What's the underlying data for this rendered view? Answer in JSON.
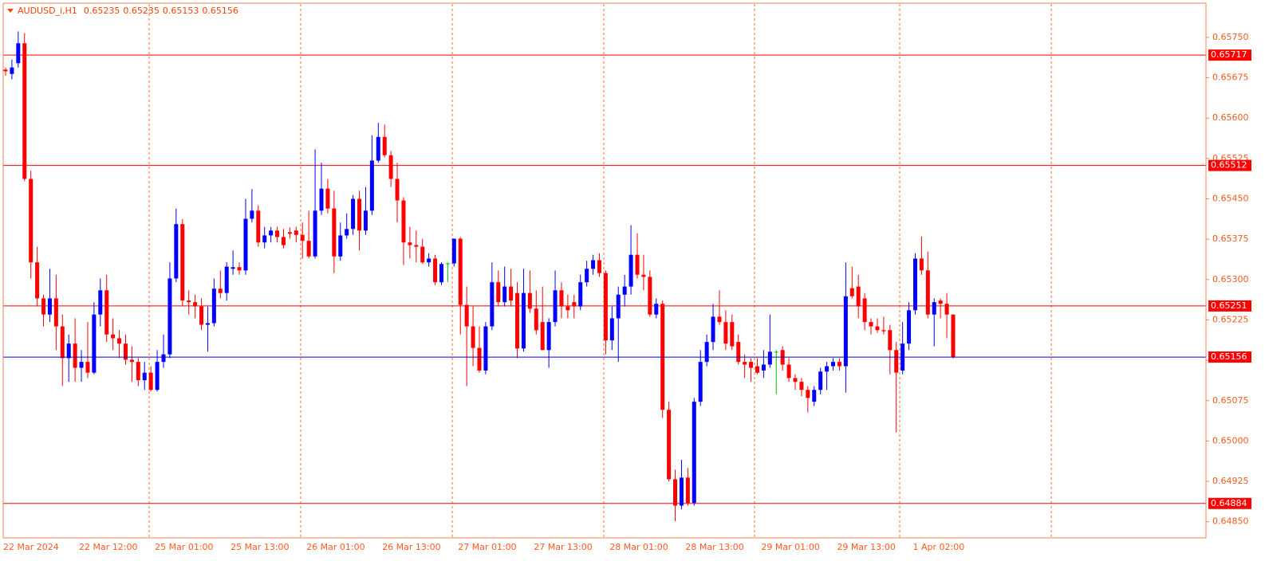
{
  "chart_data": {
    "type": "candlestick",
    "title": "AUDUSD_i,H1",
    "categories": [
      "22 Mar 2024",
      null,
      null,
      null,
      null,
      null,
      null,
      null,
      null,
      null,
      null,
      null,
      "22 Mar 12:00",
      null,
      null,
      null,
      null,
      null,
      null,
      null,
      null,
      null,
      null,
      null,
      "25 Mar 01:00",
      null,
      null,
      null,
      null,
      null,
      null,
      null,
      null,
      null,
      null,
      null,
      "25 Mar 13:00",
      null,
      null,
      null,
      null,
      null,
      null,
      null,
      null,
      null,
      null,
      null,
      "26 Mar 01:00",
      null,
      null,
      null,
      null,
      null,
      null,
      null,
      null,
      null,
      null,
      null,
      "26 Mar 13:00",
      null,
      null,
      null,
      null,
      null,
      null,
      null,
      null,
      null,
      null,
      null,
      "27 Mar 01:00",
      null,
      null,
      null,
      null,
      null,
      null,
      null,
      null,
      null,
      null,
      null,
      "27 Mar 13:00",
      null,
      null,
      null,
      null,
      null,
      null,
      null,
      null,
      null,
      null,
      null,
      "28 Mar 01:00",
      null,
      null,
      null,
      null,
      null,
      null,
      null,
      null,
      null,
      null,
      null,
      "28 Mar 13:00",
      null,
      null,
      null,
      null,
      null,
      null,
      null,
      null,
      null,
      null,
      null,
      "29 Mar 01:00",
      null,
      null,
      null,
      null,
      null,
      null,
      null,
      null,
      null,
      null,
      null,
      "29 Mar 13:00",
      null,
      null,
      null,
      null,
      null,
      null,
      null,
      null,
      null,
      null,
      null,
      "1 Apr 02:00",
      null,
      null,
      null,
      null,
      null,
      null
    ],
    "open": [
      0.6569,
      0.65682,
      0.65702,
      0.65739,
      0.65487,
      0.65332,
      0.65265,
      0.65235,
      0.65265,
      0.65213,
      0.65154,
      0.65181,
      0.65136,
      0.65147,
      0.65127,
      0.65235,
      0.6528,
      0.65198,
      0.65191,
      0.65181,
      0.65151,
      0.65147,
      0.65113,
      0.65127,
      0.65095,
      0.65147,
      0.65161,
      0.65302,
      0.65403,
      0.65261,
      0.65258,
      0.6525,
      0.65216,
      0.65219,
      0.65283,
      0.65275,
      0.6532,
      0.65323,
      0.65317,
      0.65413,
      0.65428,
      0.65369,
      0.65382,
      0.65391,
      0.65379,
      0.65388,
      0.65391,
      0.65383,
      0.65372,
      0.65343,
      0.65428,
      0.65469,
      0.65432,
      0.65343,
      0.65382,
      0.65394,
      0.6545,
      0.65391,
      0.65428,
      0.65521,
      0.65565,
      0.65531,
      0.65487,
      0.65447,
      0.65369,
      0.65364,
      0.65361,
      0.65332,
      0.65339,
      0.65295,
      0.6533,
      0.6533,
      0.65376,
      0.65253,
      0.65213,
      0.65173,
      0.65131,
      0.65213,
      0.65295,
      0.65258,
      0.65287,
      0.65275,
      0.65172,
      0.65275,
      0.65246,
      0.65221,
      0.65169,
      0.65221,
      0.6528,
      0.6525,
      0.65258,
      0.6525,
      0.65295,
      0.6532,
      0.65336,
      0.65312,
      0.65187,
      0.65228,
      0.65272,
      0.65287,
      0.65346,
      0.65309,
      0.65305,
      0.65235,
      0.65255,
      0.65058,
      0.64929,
      0.6488,
      0.64932,
      0.64885,
      0.65073,
      0.65147,
      0.65184,
      0.65231,
      0.65221,
      0.65221,
      0.65184,
      0.65147,
      0.65147,
      0.65139,
      0.65131,
      0.65142,
      0.65166,
      0.65169,
      0.65142,
      0.65117,
      0.6511,
      0.65095,
      0.65073,
      0.65095,
      0.65129,
      0.65139,
      0.65147,
      0.65139,
      0.65284,
      0.65287,
      0.65265,
      0.65221,
      0.65213,
      0.65206,
      0.65206,
      0.65169,
      0.65131,
      0.65181,
      0.65243,
      0.65339,
      0.65317,
      0.65235,
      0.65261,
      0.65255,
      0.65235
    ],
    "high": [
      0.65694,
      0.65709,
      0.65761,
      0.65758,
      0.65502,
      0.65361,
      0.65272,
      0.6532,
      0.65309,
      0.65235,
      0.65198,
      0.65228,
      0.65169,
      0.65221,
      0.65258,
      0.65302,
      0.65309,
      0.65228,
      0.65206,
      0.65198,
      0.65176,
      0.65154,
      0.65147,
      0.65139,
      0.65169,
      0.65198,
      0.65332,
      0.65432,
      0.65412,
      0.6528,
      0.65272,
      0.65265,
      0.6525,
      0.65302,
      0.65317,
      0.65332,
      0.65354,
      0.65332,
      0.6545,
      0.65468,
      0.65438,
      0.65398,
      0.65398,
      0.65398,
      0.65394,
      0.65397,
      0.65398,
      0.65406,
      0.65428,
      0.65542,
      0.65517,
      0.65487,
      0.65465,
      0.65406,
      0.65423,
      0.65457,
      0.65465,
      0.65472,
      0.65568,
      0.65591,
      0.65588,
      0.65539,
      0.65517,
      0.65453,
      0.65398,
      0.65391,
      0.65376,
      0.65349,
      0.65346,
      0.65332,
      0.65332,
      0.65376,
      0.65379,
      0.65287,
      0.6525,
      0.65213,
      0.65221,
      0.65332,
      0.65317,
      0.65324,
      0.6532,
      0.65295,
      0.6532,
      0.65317,
      0.6528,
      0.65287,
      0.65228,
      0.65317,
      0.65295,
      0.65272,
      0.65272,
      0.65309,
      0.65335,
      0.65346,
      0.65349,
      0.65317,
      0.6525,
      0.65287,
      0.65309,
      0.65401,
      0.65386,
      0.65346,
      0.65317,
      0.65265,
      0.65261,
      0.65073,
      0.64947,
      0.64965,
      0.6495,
      0.6508,
      0.65169,
      0.65198,
      0.65255,
      0.6528,
      0.65243,
      0.65235,
      0.65198,
      0.65161,
      0.65154,
      0.65154,
      0.65169,
      0.65235,
      0.65169,
      0.65176,
      0.65154,
      0.65124,
      0.65117,
      0.65102,
      0.65102,
      0.65136,
      0.65147,
      0.65154,
      0.65154,
      0.65332,
      0.65324,
      0.65309,
      0.65275,
      0.65228,
      0.65228,
      0.65231,
      0.65216,
      0.65184,
      0.65221,
      0.65258,
      0.65349,
      0.6538,
      0.65352,
      0.65265,
      0.65265,
      0.65275,
      0.65235
    ],
    "low": [
      0.65679,
      0.65672,
      0.65694,
      0.65483,
      0.65302,
      0.6525,
      0.65213,
      0.65221,
      0.65169,
      0.65102,
      0.6511,
      0.6511,
      0.6511,
      0.65117,
      0.65124,
      0.65213,
      0.65184,
      0.65169,
      0.65154,
      0.65142,
      0.6511,
      0.65102,
      0.65095,
      0.65092,
      0.65092,
      0.65136,
      0.65154,
      0.65295,
      0.6525,
      0.65235,
      0.65228,
      0.65206,
      0.65166,
      0.65213,
      0.65265,
      0.65261,
      0.65309,
      0.65309,
      0.65309,
      0.65406,
      0.65361,
      0.65358,
      0.65369,
      0.65369,
      0.65358,
      0.65376,
      0.65369,
      0.65339,
      0.65339,
      0.65339,
      0.6542,
      0.65423,
      0.65312,
      0.65335,
      0.65376,
      0.65383,
      0.65354,
      0.65383,
      0.6542,
      0.65517,
      0.65527,
      0.65472,
      0.65406,
      0.65327,
      0.65339,
      0.65332,
      0.65329,
      0.65324,
      0.6529,
      0.6529,
      0.65295,
      0.65324,
      0.65198,
      0.65102,
      0.65139,
      0.65127,
      0.65124,
      0.65206,
      0.6525,
      0.6525,
      0.6525,
      0.65154,
      0.65166,
      0.65238,
      0.65198,
      0.65169,
      0.65136,
      0.65213,
      0.65228,
      0.65228,
      0.65228,
      0.65243,
      0.65287,
      0.65309,
      0.65305,
      0.65161,
      0.65169,
      0.65147,
      0.6525,
      0.65272,
      0.65302,
      0.6528,
      0.65231,
      0.65228,
      0.65043,
      0.64925,
      0.64851,
      0.64873,
      0.6488,
      0.6488,
      0.65065,
      0.65139,
      0.65169,
      0.65216,
      0.65169,
      0.65169,
      0.65142,
      0.65117,
      0.6511,
      0.65124,
      0.65117,
      0.65136,
      0.65087,
      0.65131,
      0.6511,
      0.65095,
      0.65083,
      0.65053,
      0.65065,
      0.65087,
      0.65095,
      0.65131,
      0.65131,
      0.6509,
      0.65265,
      0.65228,
      0.65206,
      0.65198,
      0.65201,
      0.65198,
      0.65124,
      0.65016,
      0.65124,
      0.65169,
      0.65235,
      0.65309,
      0.65228,
      0.65176,
      0.65228,
      0.65191,
      0.65153
    ],
    "close": [
      0.65687,
      0.65694,
      0.65739,
      0.65487,
      0.65332,
      0.65265,
      0.65235,
      0.65265,
      0.65213,
      0.65154,
      0.65181,
      0.65136,
      0.65147,
      0.65127,
      0.65235,
      0.6528,
      0.65198,
      0.65191,
      0.65181,
      0.65151,
      0.65147,
      0.65113,
      0.65127,
      0.65095,
      0.65147,
      0.65161,
      0.65302,
      0.65403,
      0.65261,
      0.65258,
      0.6525,
      0.65216,
      0.65219,
      0.65283,
      0.65275,
      0.65324,
      0.65323,
      0.65317,
      0.65413,
      0.65428,
      0.65369,
      0.65382,
      0.65391,
      0.65379,
      0.65364,
      0.65385,
      0.65383,
      0.65372,
      0.65343,
      0.65428,
      0.65469,
      0.65432,
      0.65343,
      0.65382,
      0.65394,
      0.6545,
      0.65391,
      0.65428,
      0.65521,
      0.65565,
      0.65531,
      0.65487,
      0.65447,
      0.65369,
      0.65364,
      0.65361,
      0.65332,
      0.65339,
      0.65295,
      0.65329,
      0.6533,
      0.65376,
      0.65253,
      0.65213,
      0.65173,
      0.65131,
      0.65213,
      0.65295,
      0.65258,
      0.65287,
      0.65261,
      0.65172,
      0.65275,
      0.65246,
      0.65206,
      0.65169,
      0.65221,
      0.6528,
      0.6525,
      0.65243,
      0.6525,
      0.65295,
      0.6532,
      0.65336,
      0.65312,
      0.65187,
      0.65228,
      0.65272,
      0.65287,
      0.65346,
      0.65309,
      0.65305,
      0.65235,
      0.65255,
      0.65058,
      0.64929,
      0.6488,
      0.64932,
      0.64885,
      0.65073,
      0.65147,
      0.65184,
      0.65231,
      0.65221,
      0.65181,
      0.65176,
      0.65147,
      0.65142,
      0.65136,
      0.65127,
      0.65142,
      0.65166,
      0.65166,
      0.65142,
      0.65117,
      0.6511,
      0.65095,
      0.6508,
      0.65095,
      0.65129,
      0.65139,
      0.65147,
      0.65139,
      0.65269,
      0.65269,
      0.6525,
      0.65221,
      0.65213,
      0.65206,
      0.65204,
      0.65169,
      0.65127,
      0.65181,
      0.65243,
      0.65339,
      0.65317,
      0.65235,
      0.65258,
      0.65255,
      0.65235,
      0.65156
    ],
    "up_color": "#0000ff",
    "down_color": "#ff0000",
    "doji_color": "#00c000",
    "ylim": [
      0.6482,
      0.65812
    ],
    "yticks": [
      {
        "value": 0.6575,
        "label": "0.65750"
      },
      0.65675,
      {
        "value": 0.656,
        "label": "0.65600"
      },
      0.65525,
      {
        "value": 0.6545,
        "label": "0.65450"
      },
      0.65375,
      {
        "value": 0.653,
        "label": "0.65300"
      },
      0.65225,
      {
        "value": 0.6515,
        "label": "0.65150"
      },
      0.65075,
      {
        "value": 0.65,
        "label": "0.65000"
      },
      0.64925,
      {
        "value": 0.6485,
        "label": "0.64850"
      }
    ],
    "hlines": [
      {
        "value": 0.65717,
        "color": "#ff0000"
      },
      {
        "value": 0.65512,
        "color": "#ff0000"
      },
      {
        "value": 0.65251,
        "color": "#ff0000"
      },
      {
        "value": 0.64884,
        "color": "#ff0000"
      }
    ],
    "bid_line_color": "#0000cd"
  }
}
